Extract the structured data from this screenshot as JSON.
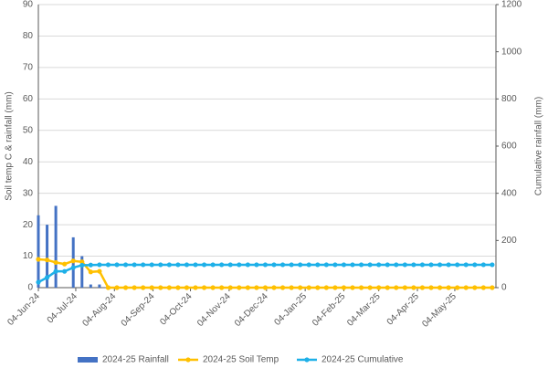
{
  "chart_data": {
    "type": "combo",
    "y_label": "Soil temp C & rainfall (mm)",
    "y2_label": "Cumulative rainfall (mm)",
    "x": [
      "2024-06-04",
      "2024-06-11",
      "2024-06-18",
      "2024-06-25",
      "2024-07-02",
      "2024-07-09",
      "2024-07-16",
      "2024-07-23",
      "2024-07-30",
      "2024-08-06",
      "2024-08-13",
      "2024-08-20",
      "2024-08-27",
      "2024-09-03",
      "2024-09-10",
      "2024-09-17",
      "2024-09-24",
      "2024-10-01",
      "2024-10-08",
      "2024-10-15",
      "2024-10-22",
      "2024-10-29",
      "2024-11-05",
      "2024-11-12",
      "2024-11-19",
      "2024-11-26",
      "2024-12-03",
      "2024-12-10",
      "2024-12-17",
      "2024-12-24",
      "2024-12-31",
      "2025-01-07",
      "2025-01-14",
      "2025-01-21",
      "2025-01-28",
      "2025-02-04",
      "2025-02-11",
      "2025-02-18",
      "2025-02-25",
      "2025-03-04",
      "2025-03-11",
      "2025-03-18",
      "2025-03-25",
      "2025-04-01",
      "2025-04-08",
      "2025-04-15",
      "2025-04-22",
      "2025-04-29",
      "2025-05-06",
      "2025-05-13",
      "2025-05-20",
      "2025-05-27",
      "2025-06-03"
    ],
    "xlim": [
      "2024-06-04",
      "2025-06-06"
    ],
    "xticks": [
      {
        "value": "2024-06-04",
        "label": "04-Jun-24"
      },
      {
        "value": "2024-07-04",
        "label": "04-Jul-24"
      },
      {
        "value": "2024-08-04",
        "label": "04-Aug-24"
      },
      {
        "value": "2024-09-04",
        "label": "04-Sep-24"
      },
      {
        "value": "2024-10-04",
        "label": "04-Oct-24"
      },
      {
        "value": "2024-11-04",
        "label": "04-Nov-24"
      },
      {
        "value": "2024-12-04",
        "label": "04-Dec-24"
      },
      {
        "value": "2025-01-04",
        "label": "04-Jan-25"
      },
      {
        "value": "2025-02-04",
        "label": "04-Feb-25"
      },
      {
        "value": "2025-03-04",
        "label": "04-Mar-25"
      },
      {
        "value": "2025-04-04",
        "label": "04-Apr-25"
      },
      {
        "value": "2025-05-04",
        "label": "04-May-25"
      }
    ],
    "ylim": [
      0,
      90
    ],
    "yticks": [
      0,
      10,
      20,
      30,
      40,
      50,
      60,
      70,
      80,
      90
    ],
    "y2lim": [
      0,
      1200
    ],
    "y2ticks": [
      0,
      200,
      400,
      600,
      800,
      1000,
      1200
    ],
    "grid": true,
    "legend": "bottom",
    "series": [
      {
        "name": "2024-25 Rainfall",
        "type": "bar",
        "color": "#4472c4",
        "values": [
          23,
          20,
          26,
          0,
          16,
          10,
          1,
          1,
          null,
          null,
          null,
          null,
          null,
          null,
          null,
          null,
          null,
          null,
          null,
          null,
          null,
          null,
          null,
          null,
          null,
          null,
          null,
          null,
          null,
          null,
          null,
          null,
          null,
          null,
          null,
          null,
          null,
          null,
          null,
          null,
          null,
          null,
          null,
          null,
          null,
          null,
          null,
          null,
          null,
          null,
          null,
          null,
          null
        ]
      },
      {
        "name": "2024-25 Soil Temp",
        "type": "line",
        "color": "#ffc000",
        "values": [
          9,
          8.8,
          8,
          7.5,
          8.5,
          8.2,
          5,
          5.2,
          0,
          0,
          0,
          0,
          0,
          0,
          0,
          0,
          0,
          0,
          0,
          0,
          0,
          0,
          0,
          0,
          0,
          0,
          0,
          0,
          0,
          0,
          0,
          0,
          0,
          0,
          0,
          0,
          0,
          0,
          0,
          0,
          0,
          0,
          0,
          0,
          0,
          0,
          0,
          0,
          0,
          0,
          0,
          0,
          0
        ]
      },
      {
        "name": "2024-25 Cumulative",
        "type": "line",
        "axis": "y2",
        "color": "#1eb0e8",
        "values": [
          23,
          43,
          69,
          69,
          85,
          95,
          96,
          97,
          97,
          97,
          97,
          97,
          97,
          97,
          97,
          97,
          97,
          97,
          97,
          97,
          97,
          97,
          97,
          97,
          97,
          97,
          97,
          97,
          97,
          97,
          97,
          97,
          97,
          97,
          97,
          97,
          97,
          97,
          97,
          97,
          97,
          97,
          97,
          97,
          97,
          97,
          97,
          97,
          97,
          97,
          97,
          97,
          97
        ]
      }
    ]
  }
}
